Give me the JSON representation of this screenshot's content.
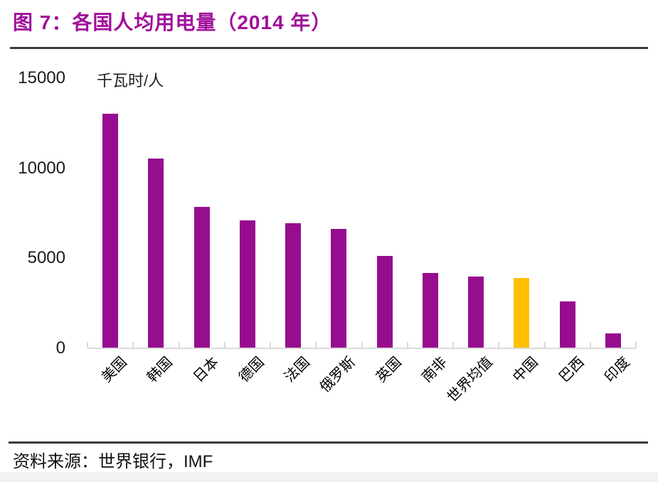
{
  "header": {
    "title": "图 7：各国人均用电量（2014 年）"
  },
  "footer": {
    "source_label": "资料来源：世界银行，IMF"
  },
  "colors": {
    "accent": "#A0109A",
    "bar": "#970D8F",
    "highlight": "#FFC000",
    "axis": "#D9D9D9",
    "divider": "#3A3A3A"
  },
  "chart_data": {
    "type": "bar",
    "title": "图 7：各国人均用电量（2014 年）",
    "ylabel": "千瓦时/人",
    "xlabel": "",
    "categories": [
      "美国",
      "韩国",
      "日本",
      "德国",
      "法国",
      "俄罗斯",
      "英国",
      "南非",
      "世界均值",
      "中国",
      "巴西",
      "印度"
    ],
    "values": [
      13000,
      10500,
      7800,
      7050,
      6900,
      6600,
      5100,
      4150,
      3950,
      3850,
      2550,
      800
    ],
    "highlight_index": 9,
    "highlight_category": "中国",
    "ylim": [
      0,
      15000
    ],
    "yticks": [
      0,
      5000,
      10000,
      15000
    ],
    "grid": "off",
    "legend": "none",
    "bar_color": "#970D8F",
    "highlight_color": "#FFC000"
  }
}
